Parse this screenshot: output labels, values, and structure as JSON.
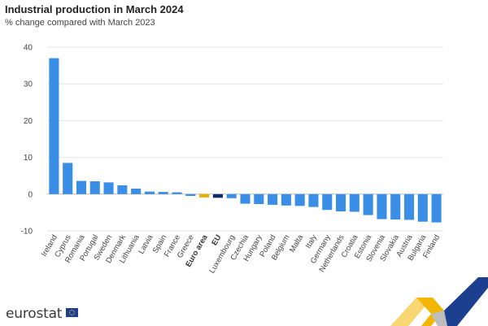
{
  "header": {
    "title": "Industrial production in March 2024",
    "subtitle": "% change compared with March 2023"
  },
  "branding": {
    "logo_text": "eurostat",
    "colors": {
      "yellow": "#f2b705",
      "blue": "#1d3f8f",
      "grey": "#c8c8c8"
    }
  },
  "chart_data": {
    "type": "bar",
    "ylim": [
      -10,
      40
    ],
    "yticks": [
      -10,
      0,
      10,
      20,
      30,
      40
    ],
    "grid": true,
    "categories": [
      "Ireland",
      "Cyprus",
      "Romania",
      "Portugal",
      "Sweden",
      "Denmark",
      "Lithuania",
      "Latvia",
      "Spain",
      "France",
      "Greece",
      "Euro area",
      "EU",
      "Luxembourg",
      "Czechia",
      "Hungary",
      "Poland",
      "Belgium",
      "Malta",
      "Italy",
      "Germany",
      "Netherlands",
      "Croatia",
      "Estonia",
      "Slovenia",
      "Slovakia",
      "Austria",
      "Bulgaria",
      "Finland"
    ],
    "values": [
      37.0,
      8.5,
      3.6,
      3.5,
      3.2,
      2.4,
      1.5,
      0.7,
      0.6,
      0.5,
      -0.5,
      -0.9,
      -1.0,
      -1.1,
      -2.6,
      -2.7,
      -2.9,
      -3.1,
      -3.2,
      -3.5,
      -4.3,
      -4.7,
      -4.8,
      -5.7,
      -6.8,
      -6.9,
      -7.0,
      -7.5,
      -7.7
    ],
    "highlight": {
      "Euro area": "#e8b000",
      "EU": "#0e2c6b"
    },
    "bold_categories": [
      "Euro area",
      "EU"
    ],
    "default_color": "#3b8ee6"
  }
}
